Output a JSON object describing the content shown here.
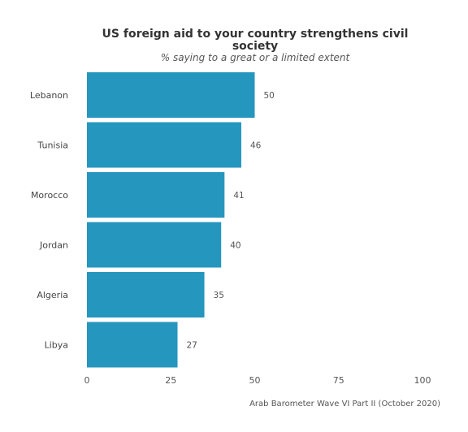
{
  "chart_data": {
    "type": "bar",
    "orientation": "horizontal",
    "title_line1": "US foreign aid to your country strengthens civil",
    "title_line2": "society",
    "subtitle": "% saying to a great or a limited extent",
    "categories": [
      "Lebanon",
      "Tunisia",
      "Morocco",
      "Jordan",
      "Algeria",
      "Libya"
    ],
    "values": [
      50,
      46,
      41,
      40,
      35,
      27
    ],
    "xlim": [
      0,
      100
    ],
    "xticks": [
      0,
      25,
      50,
      75,
      100
    ],
    "grid": false,
    "bar_color": "#2596be",
    "caption": "Arab Barometer Wave VI Part II (October 2020)"
  }
}
